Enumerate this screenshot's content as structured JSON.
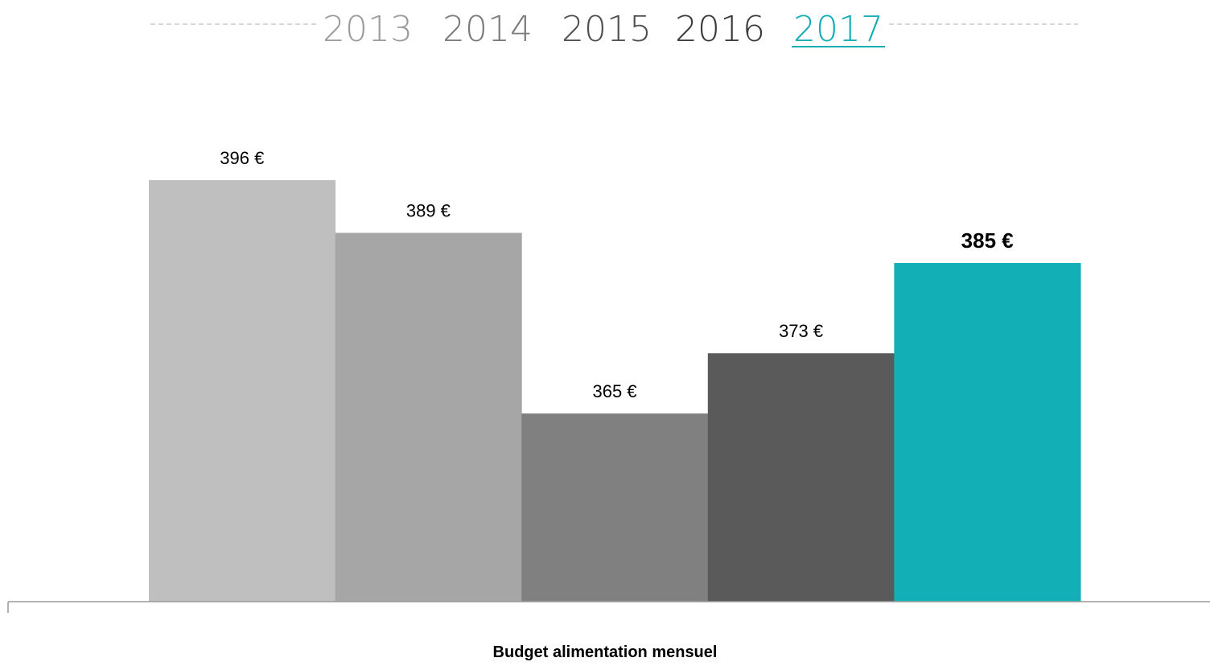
{
  "years": [
    "2013",
    "2014",
    "2015",
    "2016",
    "2017"
  ],
  "active_year": "2017",
  "caption": "Budget alimentation mensuel",
  "colors": {
    "year_tabs": [
      "#9c9c9c",
      "#7a7a7a",
      "#4f4f4f",
      "#3a3a3a",
      "#13adb5"
    ],
    "bars": [
      "#bfbfbf",
      "#a6a6a6",
      "#808080",
      "#5a5a5a",
      "#13afb6"
    ],
    "dashes": "#b0b0b0",
    "axis": "#9a9a9a"
  },
  "chart_data": {
    "type": "bar",
    "categories": [
      "2013",
      "2014",
      "2015",
      "2016",
      "2017"
    ],
    "values": [
      396,
      389,
      365,
      373,
      385
    ],
    "value_labels": [
      "396 €",
      "389 €",
      "365 €",
      "373 €",
      "385 €"
    ],
    "highlighted_index": 4,
    "xlabel": "Budget alimentation mensuel",
    "ylabel": "",
    "ylim": [
      340,
      401
    ],
    "grid": false,
    "legend": "none"
  }
}
